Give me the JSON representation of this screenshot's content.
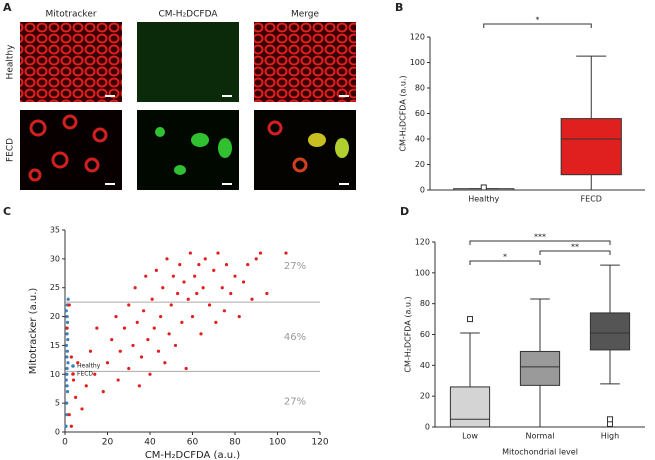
{
  "figure_a": {
    "label": "A",
    "columns": [
      "Mitotracker",
      "CM-H₂DCFDA",
      "Merge"
    ],
    "rows": [
      "Healthy",
      "FECD"
    ]
  },
  "chart_data": [
    {
      "type": "box",
      "panel": "B",
      "ylabel": "CM-H₂DCFDA (a.u.)",
      "categories": [
        "Healthy",
        "FECD"
      ],
      "boxes": [
        {
          "min": 0,
          "q1": 0,
          "median": 0,
          "q3": 1,
          "max": 1,
          "outliers": [
            2
          ],
          "color": "#ffffff"
        },
        {
          "min": 0,
          "q1": 12,
          "median": 40,
          "q3": 56,
          "max": 105,
          "outliers": [],
          "color": "#e0201e"
        }
      ],
      "ylim": [
        0,
        120
      ],
      "yticks": [
        0,
        20,
        40,
        60,
        80,
        100,
        120
      ],
      "comparisons": [
        {
          "pair": [
            0,
            1
          ],
          "label": "*"
        }
      ]
    },
    {
      "type": "scatter",
      "panel": "C",
      "xlabel": "CM-H₂DCFDA (a.u.)",
      "ylabel": "Mitotracker (a.u.)",
      "xlim": [
        0,
        120
      ],
      "xticks": [
        0,
        20,
        40,
        60,
        80,
        100,
        120
      ],
      "ylim": [
        0,
        35
      ],
      "yticks": [
        0,
        5,
        10,
        15,
        20,
        25,
        30,
        35
      ],
      "hlines": [
        22.5,
        10.5
      ],
      "region_labels": [
        "27%",
        "46%",
        "27%"
      ],
      "legend": "left",
      "series": [
        {
          "name": "Healthy",
          "color": "#3a7fc1",
          "x": [
            0.5,
            1,
            0.8,
            1.2,
            0.6,
            1,
            1.4,
            0.9,
            1.1,
            0.7,
            1.3,
            1,
            0.8,
            1.2,
            1,
            0.6,
            1.1,
            1.5,
            0.9,
            1
          ],
          "values": [
            1,
            3,
            5,
            7,
            9,
            11,
            12,
            13,
            14,
            15,
            16,
            17,
            18,
            19,
            20,
            21,
            22,
            23,
            10,
            8
          ]
        },
        {
          "name": "FECD",
          "color": "#e0201e",
          "x": [
            2,
            3,
            5,
            4,
            6,
            8,
            10,
            12,
            14,
            15,
            18,
            20,
            22,
            24,
            25,
            26,
            28,
            30,
            30,
            32,
            33,
            34,
            35,
            36,
            37,
            38,
            39,
            40,
            41,
            42,
            43,
            44,
            45,
            46,
            47,
            48,
            49,
            50,
            51,
            52,
            53,
            54,
            55,
            56,
            57,
            58,
            59,
            60,
            61,
            62,
            63,
            64,
            65,
            66,
            68,
            70,
            71,
            72,
            74,
            75,
            76,
            78,
            80,
            82,
            84,
            86,
            88,
            90,
            92,
            95,
            104,
            1,
            2,
            3
          ],
          "values": [
            3,
            1,
            6,
            9,
            12,
            4,
            8,
            14,
            10,
            18,
            7,
            12,
            16,
            20,
            9,
            14,
            18,
            22,
            11,
            15,
            25,
            19,
            8,
            13,
            21,
            27,
            16,
            10,
            23,
            18,
            28,
            14,
            20,
            25,
            12,
            30,
            17,
            22,
            27,
            15,
            24,
            29,
            19,
            26,
            11,
            23,
            31,
            20,
            27,
            24,
            29,
            17,
            25,
            30,
            22,
            28,
            19,
            31,
            25,
            21,
            29,
            24,
            27,
            20,
            26,
            29,
            23,
            30,
            31,
            24,
            31,
            18,
            22,
            13
          ]
        }
      ]
    },
    {
      "type": "box",
      "panel": "D",
      "ylabel": "CM-H₂DCFDA (a.u.)",
      "xlabel": "Mitochondrial level",
      "categories": [
        "Low",
        "Normal",
        "High"
      ],
      "boxes": [
        {
          "min": 0,
          "q1": 0,
          "median": 5,
          "q3": 26,
          "max": 61,
          "outliers": [
            70
          ],
          "color": "#d4d4d4"
        },
        {
          "min": 0,
          "q1": 27,
          "median": 39,
          "q3": 49,
          "max": 83,
          "outliers": [],
          "color": "#9a9a9a"
        },
        {
          "min": 28,
          "q1": 50,
          "median": 61,
          "q3": 74,
          "max": 105,
          "outliers": [
            2,
            5
          ],
          "color": "#555555"
        }
      ],
      "ylim": [
        0,
        120
      ],
      "yticks": [
        0,
        20,
        40,
        60,
        80,
        100,
        120
      ],
      "comparisons": [
        {
          "pair": [
            0,
            2
          ],
          "label": "***"
        },
        {
          "pair": [
            1,
            2
          ],
          "label": "**"
        },
        {
          "pair": [
            0,
            1
          ],
          "label": "*"
        }
      ]
    }
  ]
}
